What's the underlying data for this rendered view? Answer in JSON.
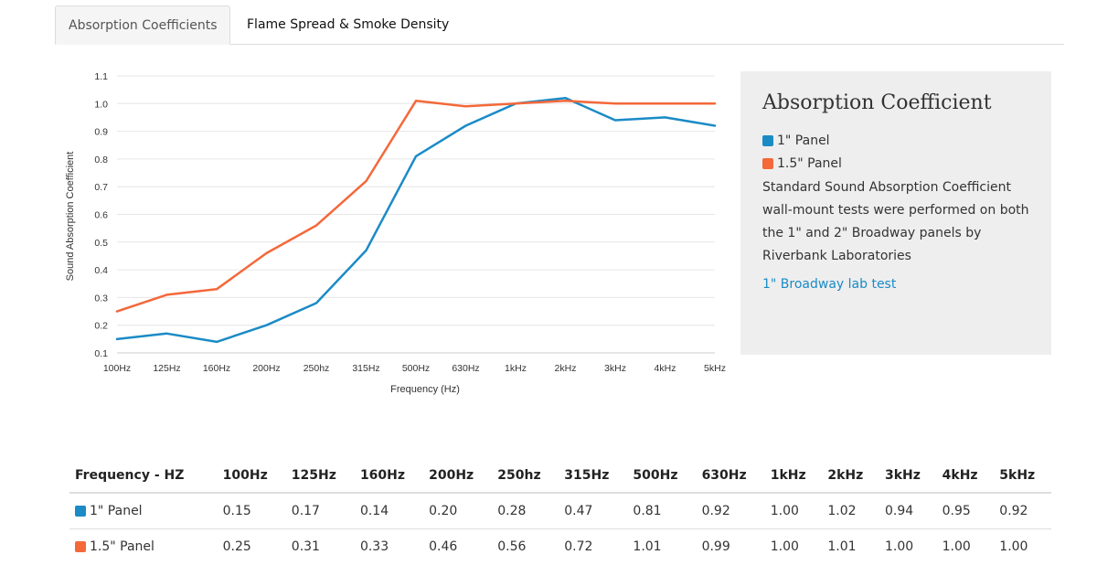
{
  "tabs": [
    {
      "label": "Absorption Coefficients"
    },
    {
      "label": "Flame Spread & Smoke Density"
    }
  ],
  "chart_data": {
    "type": "line",
    "xlabel": "Frequency (Hz)",
    "ylabel": "Sound Absorption Coefficient",
    "categories": [
      "100Hz",
      "125Hz",
      "160Hz",
      "200Hz",
      "250hz",
      "315Hz",
      "500Hz",
      "630Hz",
      "1kHz",
      "2kHz",
      "3kHz",
      "4kHz",
      "5kHz"
    ],
    "y_ticks": [
      "0.1",
      "0.2",
      "0.3",
      "0.4",
      "0.5",
      "0.6",
      "0.7",
      "0.8",
      "0.9",
      "1.0",
      "1.1"
    ],
    "ylim": [
      0.1,
      1.1
    ],
    "grid": true,
    "series": [
      {
        "name": "1\" Panel",
        "color": "#1b8bc6",
        "values": [
          0.15,
          0.17,
          0.14,
          0.2,
          0.28,
          0.47,
          0.81,
          0.92,
          1.0,
          1.02,
          0.94,
          0.95,
          0.92
        ]
      },
      {
        "name": "1.5\" Panel",
        "color": "#f4683a",
        "values": [
          0.25,
          0.31,
          0.33,
          0.46,
          0.56,
          0.72,
          1.01,
          0.99,
          1.0,
          1.01,
          1.0,
          1.0,
          1.0
        ]
      }
    ]
  },
  "info": {
    "title": "Absorption Coefficient",
    "legend": [
      {
        "label": "1\" Panel",
        "color": "#1b8bc6"
      },
      {
        "label": "1.5\" Panel",
        "color": "#f4683a"
      }
    ],
    "description": "Standard Sound Absorption Coefficient wall-mount tests were performed on both the 1\" and 2\" Broadway panels by Riverbank Laboratories",
    "link_label": "1\" Broadway lab test"
  },
  "table": {
    "headers": [
      "Frequency - HZ",
      "100Hz",
      "125Hz",
      "160Hz",
      "200Hz",
      "250hz",
      "315Hz",
      "500Hz",
      "630Hz",
      "1kHz",
      "2kHz",
      "3kHz",
      "4kHz",
      "5kHz"
    ],
    "rows": [
      {
        "label": "1\" Panel",
        "color": "#1b8bc6",
        "cells": [
          "0.15",
          "0.17",
          "0.14",
          "0.20",
          "0.28",
          "0.47",
          "0.81",
          "0.92",
          "1.00",
          "1.02",
          "0.94",
          "0.95",
          "0.92"
        ]
      },
      {
        "label": "1.5\" Panel",
        "color": "#f4683a",
        "cells": [
          "0.25",
          "0.31",
          "0.33",
          "0.46",
          "0.56",
          "0.72",
          "1.01",
          "0.99",
          "1.00",
          "1.01",
          "1.00",
          "1.00",
          "1.00"
        ]
      }
    ]
  }
}
